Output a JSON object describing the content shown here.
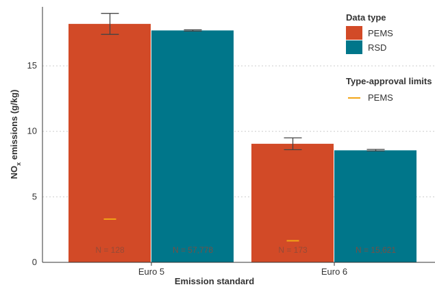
{
  "chart_data": {
    "type": "bar",
    "categories": [
      "Euro 5",
      "Euro 6"
    ],
    "series": [
      {
        "name": "PEMS",
        "color": "#d24a27",
        "values": [
          18.2,
          9.05
        ],
        "err_low": [
          17.4,
          8.6
        ],
        "err_high": [
          19.0,
          9.5
        ]
      },
      {
        "name": "RSD",
        "color": "#00768a",
        "values": [
          17.7,
          8.55
        ],
        "err_low": [
          17.65,
          8.5
        ],
        "err_high": [
          17.75,
          8.62
        ]
      }
    ],
    "sample_sizes": [
      [
        "N = 128",
        "N = 57,778"
      ],
      [
        "N = 173",
        "N = 15,621"
      ]
    ],
    "type_approval_limits": {
      "name": "PEMS",
      "color": "#f2a516",
      "values": [
        3.3,
        1.65
      ]
    },
    "xlabel": "Emission standard",
    "ylabel_main": "NO",
    "ylabel_sub": "x",
    "ylabel_rest": " emissions (g/kg)",
    "ylim": [
      0,
      19.5
    ],
    "yticks": [
      "0",
      "5",
      "10",
      "15"
    ],
    "grid": true,
    "legend": {
      "position": "right",
      "data_type_title": "Data type",
      "limits_title": "Type-approval limits"
    }
  }
}
